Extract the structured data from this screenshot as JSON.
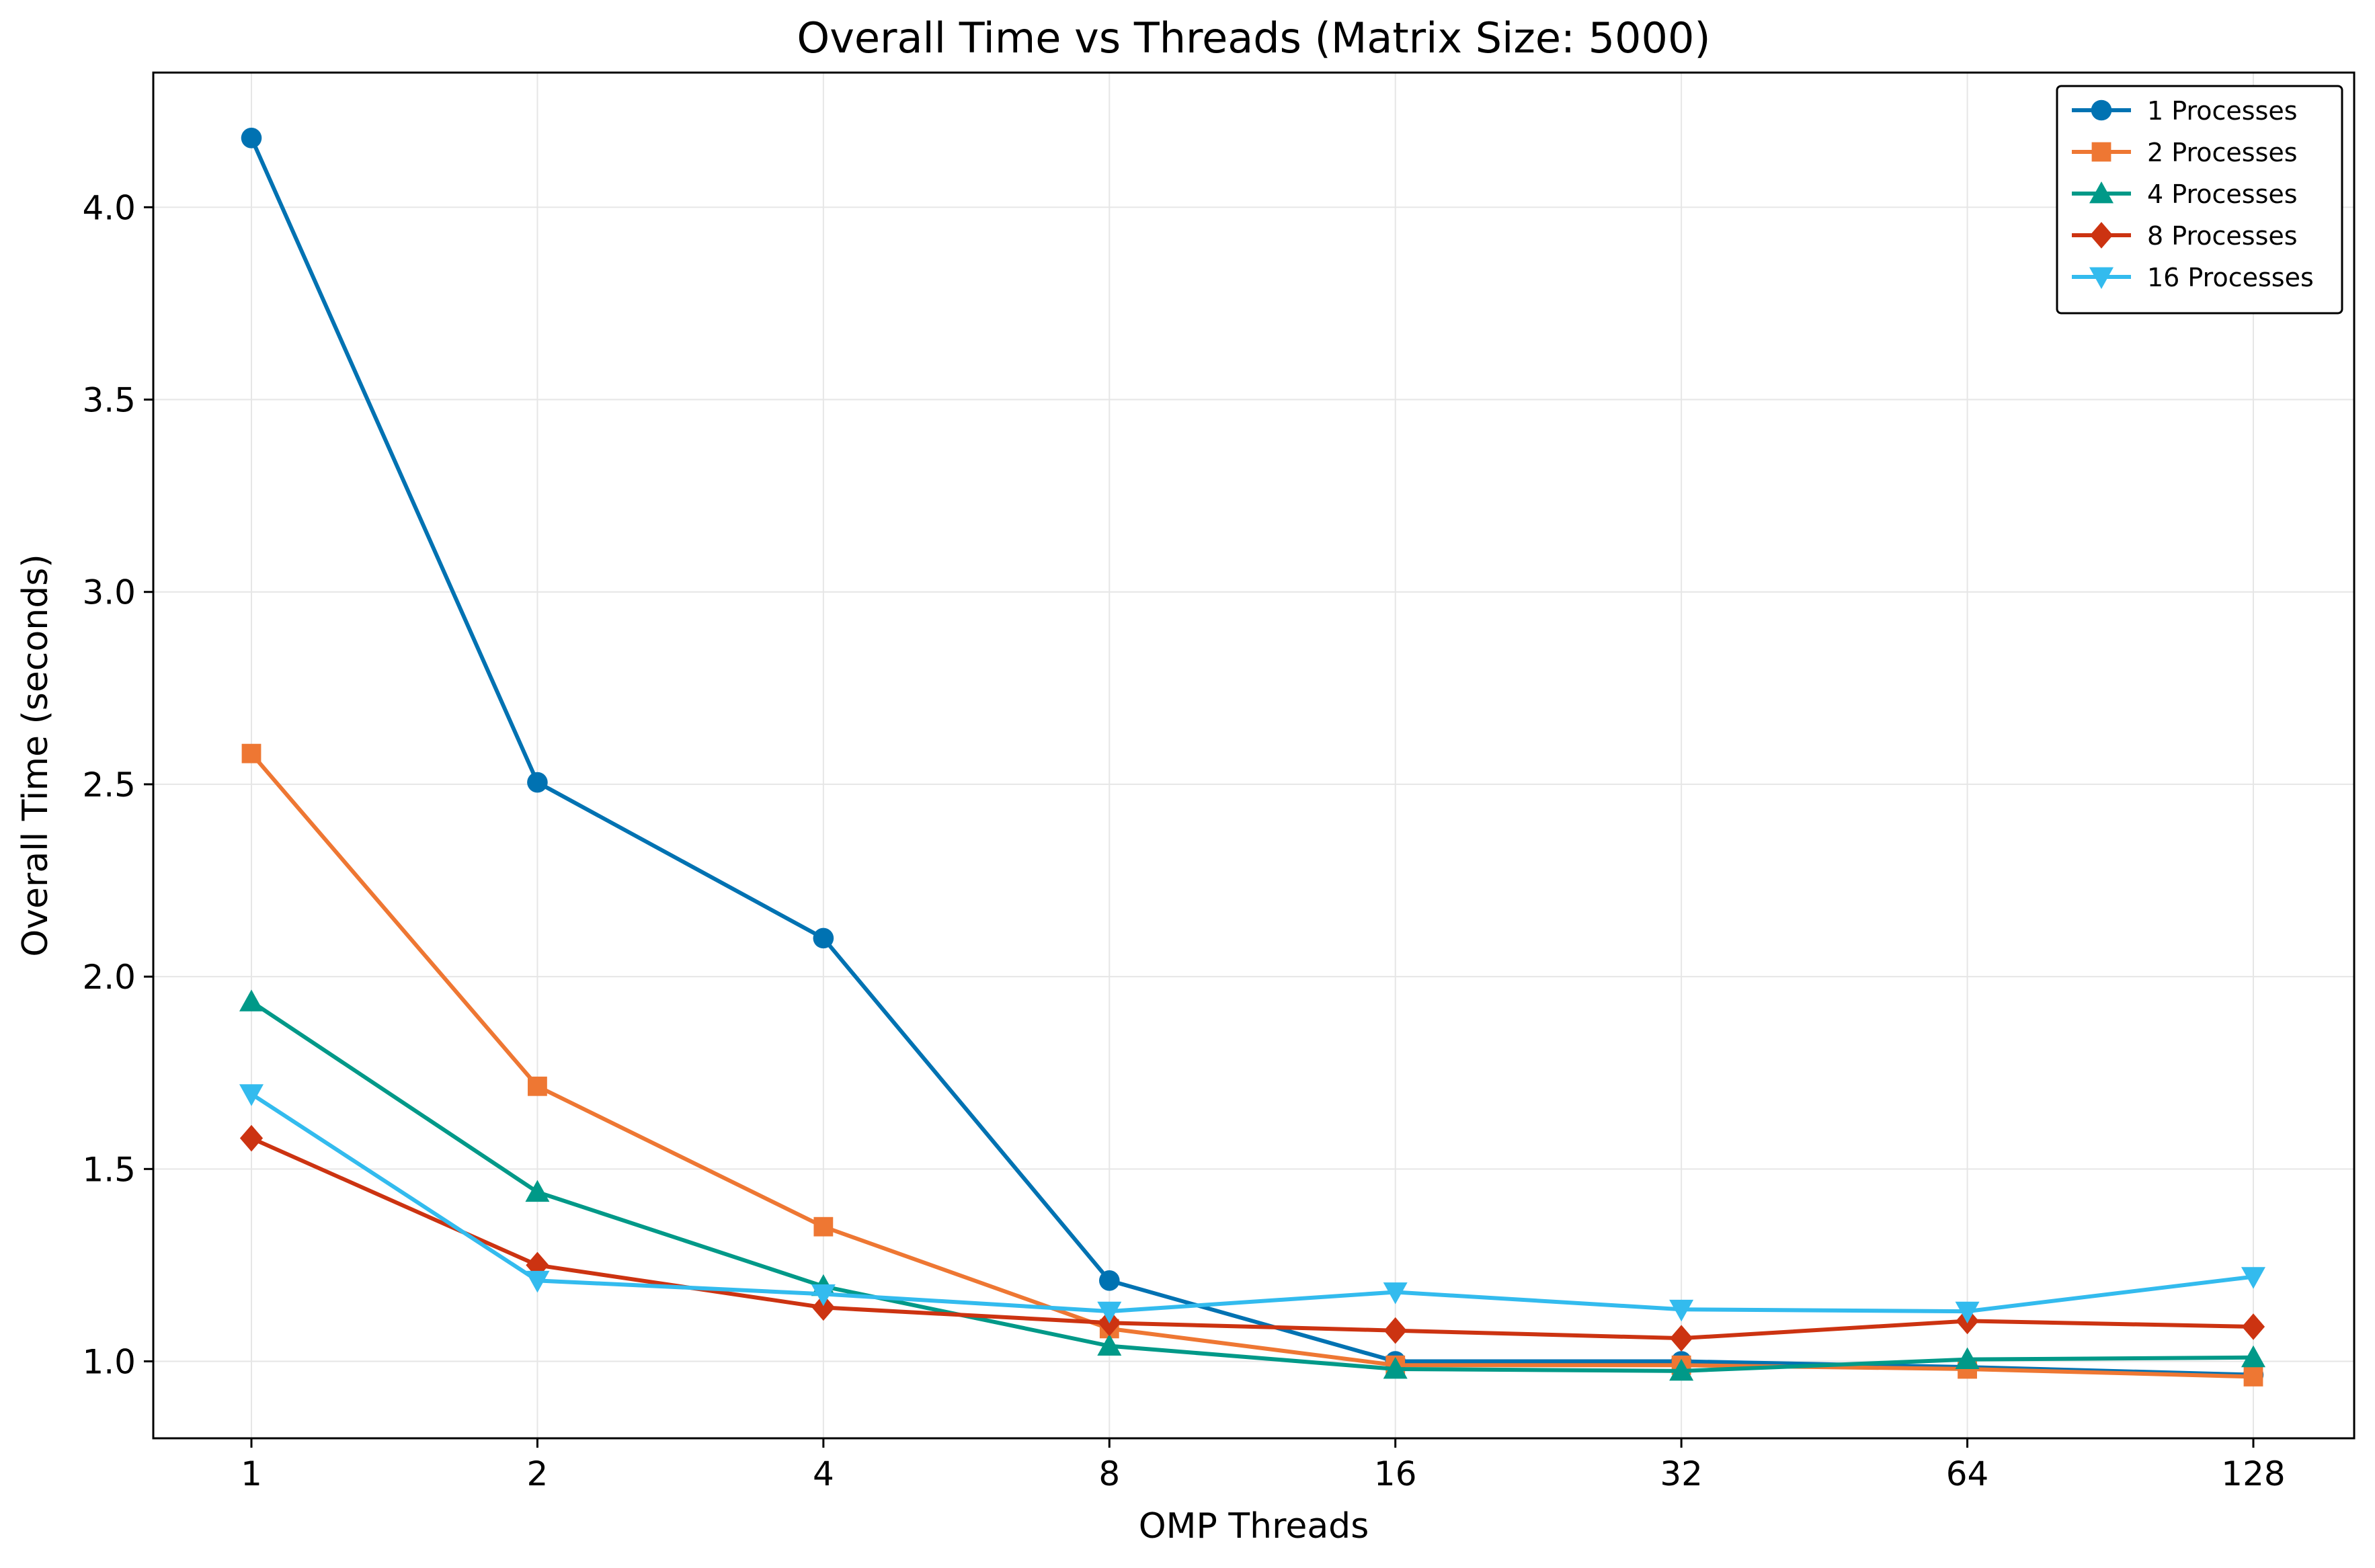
{
  "chart_data": {
    "type": "line",
    "title": "Overall Time vs Threads (Matrix Size: 5000)",
    "xlabel": "OMP Threads",
    "ylabel": "Overall Time (seconds)",
    "x_scale": "log2",
    "categories": [
      "1",
      "2",
      "4",
      "8",
      "16",
      "32",
      "64",
      "128"
    ],
    "x": [
      1,
      2,
      4,
      8,
      16,
      32,
      64,
      128
    ],
    "ylim": [
      0.8,
      4.35
    ],
    "yticks": [
      1.0,
      1.5,
      2.0,
      2.5,
      3.0,
      3.5,
      4.0
    ],
    "ytick_labels": [
      "1.0",
      "1.5",
      "2.0",
      "2.5",
      "3.0",
      "3.5",
      "4.0"
    ],
    "grid": true,
    "legend_position": "top-right",
    "series": [
      {
        "name": "1 Processes",
        "color": "#0072B2",
        "marker": "circle",
        "values": [
          4.18,
          2.505,
          2.1,
          1.21,
          1.0,
          1.0,
          0.985,
          0.965
        ]
      },
      {
        "name": "2 Processes",
        "color": "#EE7733",
        "marker": "square",
        "values": [
          2.58,
          1.715,
          1.35,
          1.085,
          0.99,
          0.99,
          0.98,
          0.96
        ]
      },
      {
        "name": "4 Processes",
        "color": "#009988",
        "marker": "triangle-up",
        "values": [
          1.935,
          1.44,
          1.195,
          1.04,
          0.98,
          0.975,
          1.005,
          1.01
        ]
      },
      {
        "name": "8 Processes",
        "color": "#CC3311",
        "marker": "diamond",
        "values": [
          1.58,
          1.25,
          1.14,
          1.1,
          1.08,
          1.06,
          1.105,
          1.09
        ]
      },
      {
        "name": "16 Processes",
        "color": "#33BBEE",
        "marker": "triangle-down",
        "values": [
          1.695,
          1.21,
          1.175,
          1.13,
          1.18,
          1.135,
          1.13,
          1.22
        ]
      }
    ]
  }
}
